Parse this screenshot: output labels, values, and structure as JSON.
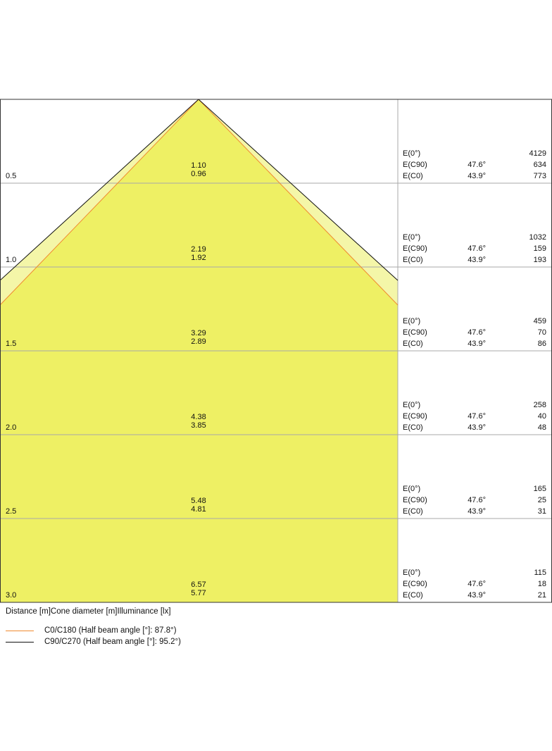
{
  "chart_data": {
    "type": "cone-diagram",
    "header": "Distance [m]Cone diameter [m]Illuminance [lx]",
    "colors": {
      "inner_fill": "#eef064",
      "outer_fill": "#f4f6a8",
      "c0_line": "#f08a30",
      "c90_line": "#111111",
      "grid": "#a8a8a8"
    },
    "half_beam_angles": {
      "c0": 87.8,
      "c90": 95.2
    },
    "legend": [
      {
        "label": "C0/C180 (Half beam angle [°]: 87.8°)",
        "color": "#f08a30"
      },
      {
        "label": "C90/C270 (Half beam angle [°]: 95.2°)",
        "color": "#111111"
      }
    ],
    "rows": [
      {
        "distance": "0.5",
        "diam_c90": "1.10",
        "diam_c0": "0.96",
        "e0_label": "E(0°)",
        "e0": "4129",
        "ec90_label": "E(C90)",
        "ec90_angle": "47.6°",
        "ec90": "634",
        "ec0_label": "E(C0)",
        "ec0_angle": "43.9°",
        "ec0": "773"
      },
      {
        "distance": "1.0",
        "diam_c90": "2.19",
        "diam_c0": "1.92",
        "e0_label": "E(0°)",
        "e0": "1032",
        "ec90_label": "E(C90)",
        "ec90_angle": "47.6°",
        "ec90": "159",
        "ec0_label": "E(C0)",
        "ec0_angle": "43.9°",
        "ec0": "193"
      },
      {
        "distance": "1.5",
        "diam_c90": "3.29",
        "diam_c0": "2.89",
        "e0_label": "E(0°)",
        "e0": "459",
        "ec90_label": "E(C90)",
        "ec90_angle": "47.6°",
        "ec90": "70",
        "ec0_label": "E(C0)",
        "ec0_angle": "43.9°",
        "ec0": "86"
      },
      {
        "distance": "2.0",
        "diam_c90": "4.38",
        "diam_c0": "3.85",
        "e0_label": "E(0°)",
        "e0": "258",
        "ec90_label": "E(C90)",
        "ec90_angle": "47.6°",
        "ec90": "40",
        "ec0_label": "E(C0)",
        "ec0_angle": "43.9°",
        "ec0": "48"
      },
      {
        "distance": "2.5",
        "diam_c90": "5.48",
        "diam_c0": "4.81",
        "e0_label": "E(0°)",
        "e0": "165",
        "ec90_label": "E(C90)",
        "ec90_angle": "47.6°",
        "ec90": "25",
        "ec0_label": "E(C0)",
        "ec0_angle": "43.9°",
        "ec0": "31"
      },
      {
        "distance": "3.0",
        "diam_c90": "6.57",
        "diam_c0": "5.77",
        "e0_label": "E(0°)",
        "e0": "115",
        "ec90_label": "E(C90)",
        "ec90_angle": "47.6°",
        "ec90": "18",
        "ec0_label": "E(C0)",
        "ec0_angle": "43.9°",
        "ec0": "21"
      }
    ]
  }
}
